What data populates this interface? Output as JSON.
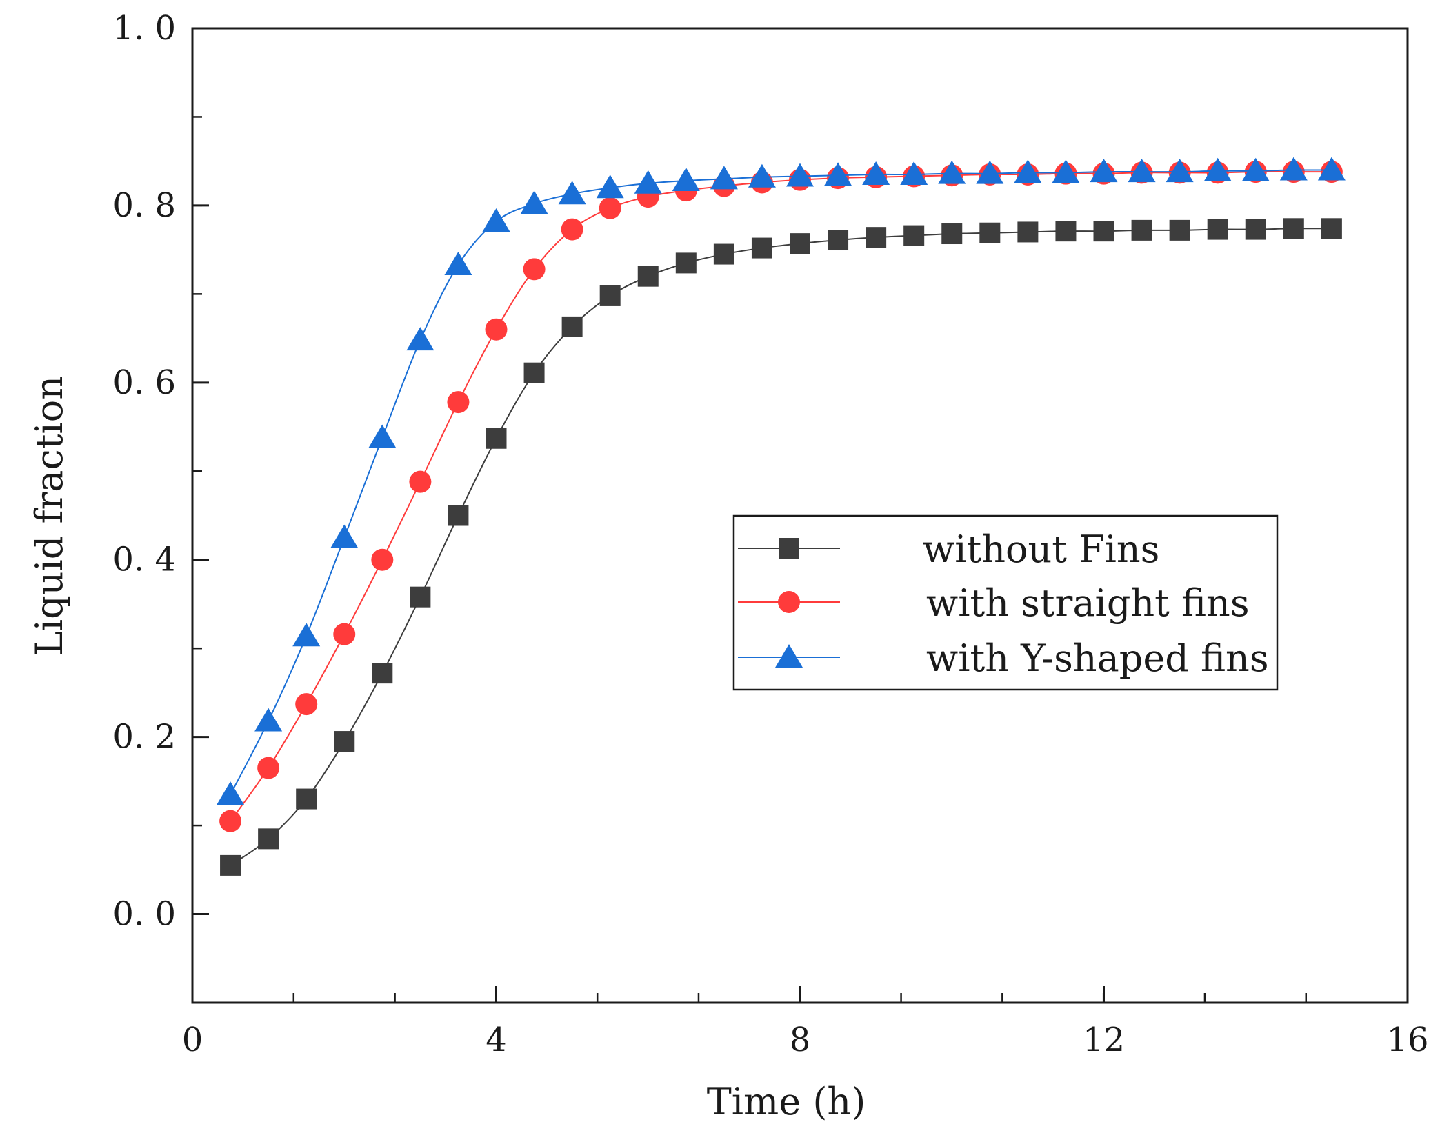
{
  "chart_data": {
    "type": "line",
    "title": "",
    "xlabel": "Time (h)",
    "ylabel": "Liquid fraction",
    "xlim": [
      0,
      16
    ],
    "ylim": [
      -0.1,
      1.0
    ],
    "x_ticks": [
      0,
      4,
      8,
      12,
      16
    ],
    "x_tick_labels": [
      "0",
      "4",
      "8",
      "12",
      "16"
    ],
    "x_minor_step": 1.333,
    "y_ticks": [
      0.0,
      0.2,
      0.4,
      0.6,
      0.8,
      1.0
    ],
    "y_tick_labels": [
      "0. 0",
      "0. 2",
      "0. 4",
      "0. 6",
      "0. 8",
      "1. 0"
    ],
    "y_minor_step": 0.1,
    "grid": false,
    "legend_position": "center-right",
    "x": [
      0.5,
      1.0,
      1.5,
      2.0,
      2.5,
      3.0,
      3.5,
      4.0,
      4.5,
      5.0,
      5.5,
      6.0,
      6.5,
      7.0,
      7.5,
      8.0,
      8.5,
      9.0,
      9.5,
      10.0,
      10.5,
      11.0,
      11.5,
      12.0,
      12.5,
      13.0,
      13.5,
      14.0,
      14.5,
      15.0
    ],
    "series": [
      {
        "name": "without Fins",
        "marker": "square",
        "color": "#3d3d3d",
        "values": [
          0.055,
          0.085,
          0.13,
          0.195,
          0.272,
          0.358,
          0.45,
          0.537,
          0.611,
          0.663,
          0.698,
          0.72,
          0.735,
          0.745,
          0.752,
          0.757,
          0.761,
          0.764,
          0.766,
          0.768,
          0.769,
          0.77,
          0.771,
          0.771,
          0.772,
          0.772,
          0.773,
          0.773,
          0.774,
          0.774
        ]
      },
      {
        "name": "with straight fins",
        "marker": "circle",
        "color": "#ff3b3b",
        "values": [
          0.105,
          0.165,
          0.237,
          0.316,
          0.4,
          0.488,
          0.578,
          0.66,
          0.728,
          0.773,
          0.797,
          0.81,
          0.817,
          0.822,
          0.826,
          0.829,
          0.831,
          0.832,
          0.833,
          0.834,
          0.835,
          0.835,
          0.836,
          0.836,
          0.837,
          0.837,
          0.837,
          0.838,
          0.838,
          0.838
        ]
      },
      {
        "name": "with Y-shaped fins",
        "marker": "triangle",
        "color": "#1a6fd6",
        "values": [
          0.135,
          0.218,
          0.314,
          0.425,
          0.538,
          0.648,
          0.733,
          0.782,
          0.802,
          0.813,
          0.82,
          0.825,
          0.828,
          0.83,
          0.832,
          0.833,
          0.834,
          0.835,
          0.835,
          0.836,
          0.836,
          0.837,
          0.837,
          0.838,
          0.838,
          0.838,
          0.839,
          0.839,
          0.84,
          0.84
        ]
      }
    ]
  }
}
